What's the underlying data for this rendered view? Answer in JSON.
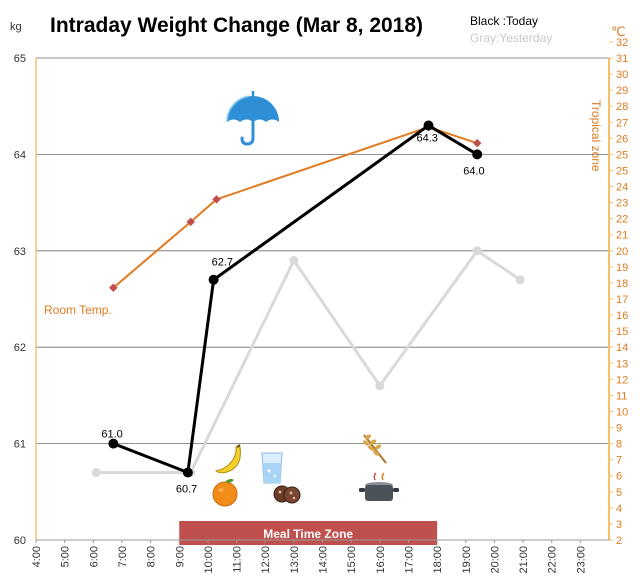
{
  "title": "Intraday Weight Change (Mar 8, 2018)",
  "legend": {
    "today": "Black :Today",
    "yesterday": "Gray:Yesterday"
  },
  "left_unit": "kg",
  "right_unit": "℃",
  "room_temp_label": "Room Temp.",
  "tropical_zone_label": "Tropical zone",
  "meal_zone_label": "Meal Time Zone",
  "colors": {
    "today": "#000000",
    "yesterday": "#d9d9d9",
    "temperature": "#e07b1f",
    "temperature_marker": "#c0504d",
    "meal_zone": "#c0504d",
    "right_axis": "#f5c06b"
  },
  "icons": [
    "umbrella-icon",
    "banana-icon",
    "orange-icon",
    "glass-of-water-icon",
    "cookies-icon",
    "wheat-icon",
    "cooking-pot-icon"
  ],
  "chart_data": {
    "type": "line",
    "title": "Intraday Weight Change (Mar 8, 2018)",
    "x_ticks": [
      "4:00",
      "5:00",
      "6:00",
      "7:00",
      "8:00",
      "9:00",
      "10:00",
      "11:00",
      "12:00",
      "13:00",
      "14:00",
      "15:00",
      "16:00",
      "17:00",
      "18:00",
      "19:00",
      "20:00",
      "21:00",
      "22:00",
      "23:00"
    ],
    "xlim": [
      4,
      24
    ],
    "y_left": {
      "label": "kg",
      "lim": [
        60,
        65
      ],
      "ticks": [
        "60",
        "61",
        "62",
        "63",
        "64",
        "65"
      ]
    },
    "y_right": {
      "label": "℃",
      "lim": [
        2,
        32
      ],
      "ticks": [
        "2",
        "3",
        "4",
        "5",
        "6",
        "7",
        "8",
        "9",
        "10",
        "11",
        "12",
        "13",
        "14",
        "15",
        "16",
        "17",
        "18",
        "19",
        "20",
        "21",
        "22",
        "23",
        "24",
        "25",
        "25",
        "26",
        "27",
        "28",
        "29",
        "30",
        "31",
        "32"
      ]
    },
    "grid": "horizontal",
    "series": [
      {
        "name": "Today",
        "axis": "left",
        "points": [
          {
            "x": 6.7,
            "y": 61.0,
            "label": "61.0"
          },
          {
            "x": 9.3,
            "y": 60.7,
            "label": "60.7"
          },
          {
            "x": 10.2,
            "y": 62.7,
            "label": "62.7"
          },
          {
            "x": 17.7,
            "y": 64.3,
            "label": "64.3"
          },
          {
            "x": 19.4,
            "y": 64.0,
            "label": "64.0"
          }
        ]
      },
      {
        "name": "Yesterday",
        "axis": "left",
        "points": [
          {
            "x": 6.1,
            "y": 60.7
          },
          {
            "x": 9.4,
            "y": 60.7
          },
          {
            "x": 13.0,
            "y": 62.9
          },
          {
            "x": 16.0,
            "y": 61.6
          },
          {
            "x": 19.4,
            "y": 63.0
          },
          {
            "x": 20.9,
            "y": 62.7
          }
        ]
      },
      {
        "name": "Room Temp.",
        "axis": "right",
        "points": [
          {
            "x": 6.7,
            "y": 17.7
          },
          {
            "x": 9.4,
            "y": 21.8
          },
          {
            "x": 10.3,
            "y": 23.2
          },
          {
            "x": 17.7,
            "y": 27.7
          },
          {
            "x": 19.4,
            "y": 26.7
          }
        ]
      }
    ],
    "meal_time_zone": {
      "x_start": 9.0,
      "x_end": 18.0,
      "label": "Meal Time Zone"
    }
  }
}
